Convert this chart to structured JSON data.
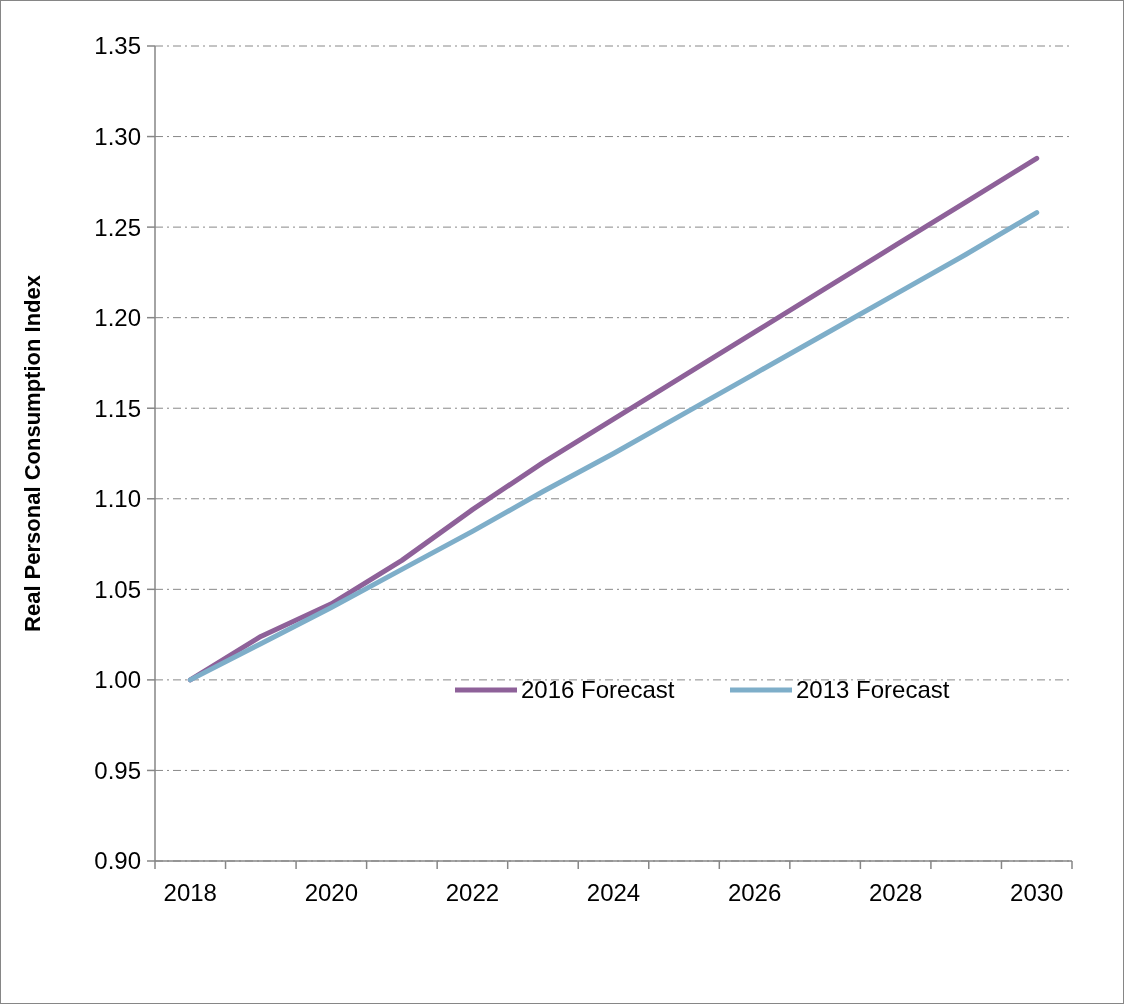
{
  "chart_data": {
    "type": "line",
    "ylabel": "Real Personal Consumption Index",
    "categories": [
      "2018",
      null,
      "2020",
      null,
      "2022",
      null,
      "2024",
      null,
      "2026",
      null,
      "2028",
      null,
      "2030"
    ],
    "series": [
      {
        "name": "2016 Forecast",
        "color": "#8e6199",
        "values": [
          1.0,
          1.024,
          1.042,
          1.066,
          1.094,
          1.12,
          1.144,
          1.168,
          1.192,
          1.216,
          1.24,
          1.264,
          1.288
        ]
      },
      {
        "name": "2013 Forecast",
        "color": "#7eaec9",
        "values": [
          1.0,
          1.02,
          1.04,
          1.061,
          1.082,
          1.104,
          1.125,
          1.147,
          1.169,
          1.191,
          1.213,
          1.235,
          1.258
        ]
      }
    ],
    "ylim": [
      0.9,
      1.35
    ],
    "yticks": [
      {
        "value": 0.9,
        "label": "0.90"
      },
      {
        "value": 0.95,
        "label": "0.95"
      },
      {
        "value": 1.0,
        "label": "1.00"
      },
      {
        "value": 1.05,
        "label": "1.05"
      },
      {
        "value": 1.1,
        "label": "1.10"
      },
      {
        "value": 1.15,
        "label": "1.15"
      },
      {
        "value": 1.2,
        "label": "1.20"
      },
      {
        "value": 1.25,
        "label": "1.25"
      },
      {
        "value": 1.3,
        "label": "1.30"
      },
      {
        "value": 1.35,
        "label": "1.35"
      }
    ],
    "grid": "y",
    "legend": "right",
    "line_style": "solid"
  }
}
